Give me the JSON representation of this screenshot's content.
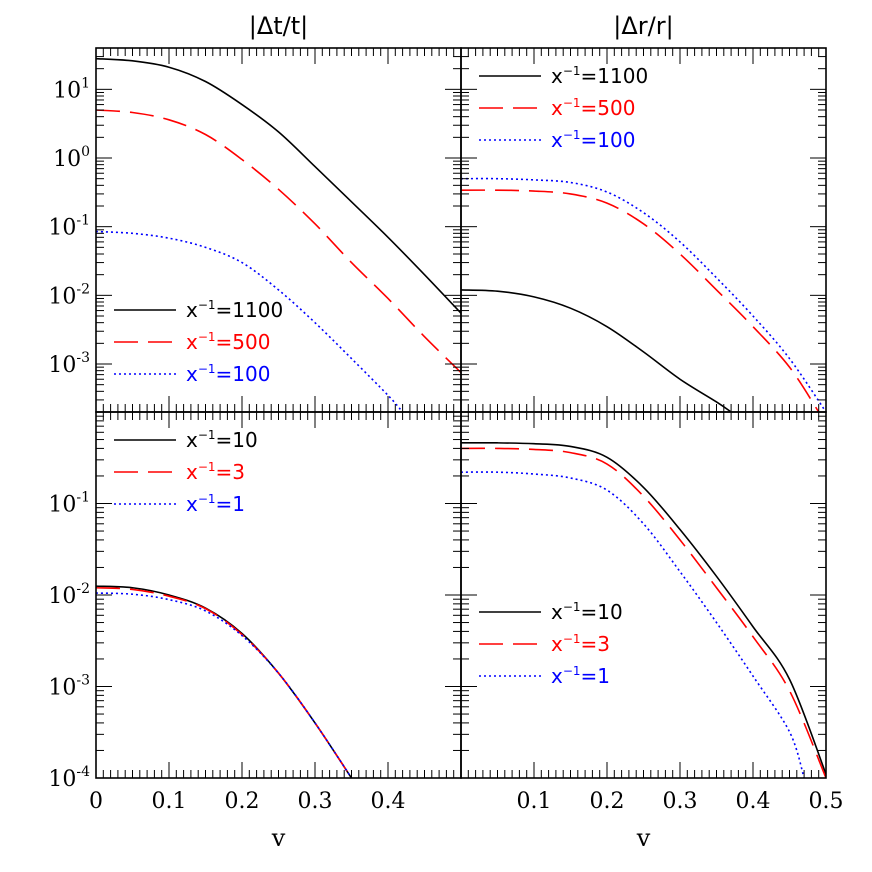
{
  "chart_data": [
    {
      "type": "line",
      "panel": "top-left",
      "title": "|Δt/t|",
      "xlim": [
        0,
        0.5
      ],
      "ylim": [
        0.0002,
        40
      ],
      "yscale": "log",
      "yticks": [
        {
          "value": 10,
          "base": "10",
          "exp": "1"
        },
        {
          "value": 1,
          "base": "10",
          "exp": "0"
        },
        {
          "value": 0.1,
          "base": "10",
          "exp": "-1"
        },
        {
          "value": 0.01,
          "base": "10",
          "exp": "-2"
        },
        {
          "value": 0.001,
          "base": "10",
          "exp": "-3"
        }
      ],
      "legend_position": "bottom-left",
      "series": [
        {
          "name": "x⁻¹=1100",
          "label_base": "x",
          "label_sup": "−1",
          "label_rest": "=1100",
          "color": "#000000",
          "dash": "solid",
          "x": [
            0,
            0.05,
            0.1,
            0.15,
            0.2,
            0.25,
            0.3,
            0.35,
            0.4,
            0.45,
            0.5
          ],
          "y": [
            28,
            26,
            21,
            13,
            6,
            2.4,
            0.75,
            0.23,
            0.07,
            0.02,
            0.0055
          ]
        },
        {
          "name": "x⁻¹=500",
          "label_base": "x",
          "label_sup": "−1",
          "label_rest": "=500",
          "color": "#ff0000",
          "dash": "long",
          "x": [
            0,
            0.05,
            0.1,
            0.15,
            0.2,
            0.25,
            0.3,
            0.35,
            0.4,
            0.45,
            0.5
          ],
          "y": [
            5,
            4.6,
            3.6,
            2.2,
            0.95,
            0.35,
            0.11,
            0.03,
            0.009,
            0.0025,
            0.00075
          ]
        },
        {
          "name": "x⁻¹=100",
          "label_base": "x",
          "label_sup": "−1",
          "label_rest": "=100",
          "color": "#0000ff",
          "dash": "dotted",
          "x": [
            0,
            0.05,
            0.1,
            0.15,
            0.2,
            0.25,
            0.3,
            0.35,
            0.4,
            0.42
          ],
          "y": [
            0.085,
            0.08,
            0.068,
            0.05,
            0.03,
            0.012,
            0.004,
            0.0012,
            0.00035,
            0.0002
          ]
        }
      ]
    },
    {
      "type": "line",
      "panel": "top-right",
      "title": "|Δr/r|",
      "xlim": [
        0,
        0.5
      ],
      "ylim": [
        0.0002,
        40
      ],
      "yscale": "log",
      "legend_position": "top-left",
      "series": [
        {
          "name": "x⁻¹=1100",
          "label_base": "x",
          "label_sup": "−1",
          "label_rest": "=1100",
          "color": "#000000",
          "dash": "solid",
          "x": [
            0,
            0.05,
            0.1,
            0.15,
            0.2,
            0.25,
            0.3,
            0.35,
            0.37
          ],
          "y": [
            0.012,
            0.0115,
            0.0095,
            0.0065,
            0.0035,
            0.0015,
            0.0006,
            0.00028,
            0.0002
          ]
        },
        {
          "name": "x⁻¹=500",
          "label_base": "x",
          "label_sup": "−1",
          "label_rest": "=500",
          "color": "#ff0000",
          "dash": "long",
          "x": [
            0,
            0.05,
            0.1,
            0.15,
            0.2,
            0.25,
            0.3,
            0.35,
            0.4,
            0.45,
            0.49
          ],
          "y": [
            0.34,
            0.34,
            0.33,
            0.3,
            0.22,
            0.11,
            0.04,
            0.012,
            0.0035,
            0.0009,
            0.0002
          ]
        },
        {
          "name": "x⁻¹=100",
          "label_base": "x",
          "label_sup": "−1",
          "label_rest": "=100",
          "color": "#0000ff",
          "dash": "dotted",
          "x": [
            0,
            0.05,
            0.1,
            0.15,
            0.2,
            0.25,
            0.3,
            0.35,
            0.4,
            0.45,
            0.5
          ],
          "y": [
            0.5,
            0.5,
            0.48,
            0.44,
            0.32,
            0.16,
            0.06,
            0.018,
            0.005,
            0.0012,
            0.0002
          ]
        }
      ]
    },
    {
      "type": "line",
      "panel": "bottom-left",
      "xlabel": "v",
      "xlim": [
        0,
        0.5
      ],
      "ylim": [
        0.0001,
        1
      ],
      "yscale": "log",
      "xticks": [
        "0",
        "0.1",
        "0.2",
        "0.3",
        "0.4"
      ],
      "yticks": [
        {
          "value": 0.1,
          "base": "10",
          "exp": "-1"
        },
        {
          "value": 0.01,
          "base": "10",
          "exp": "-2"
        },
        {
          "value": 0.001,
          "base": "10",
          "exp": "-3"
        },
        {
          "value": 0.0001,
          "base": "10",
          "exp": "-4"
        }
      ],
      "legend_position": "top-left",
      "series": [
        {
          "name": "x⁻¹=10",
          "label_base": "x",
          "label_sup": "−1",
          "label_rest": "=10",
          "color": "#000000",
          "dash": "solid",
          "x": [
            0,
            0.05,
            0.1,
            0.15,
            0.2,
            0.25,
            0.3,
            0.35
          ],
          "y": [
            0.0125,
            0.012,
            0.01,
            0.0072,
            0.0038,
            0.0014,
            0.0004,
            0.0001
          ]
        },
        {
          "name": "x⁻¹=3",
          "label_base": "x",
          "label_sup": "−1",
          "label_rest": "=3",
          "color": "#ff0000",
          "dash": "long",
          "x": [
            0,
            0.05,
            0.1,
            0.15,
            0.2,
            0.25,
            0.3,
            0.35
          ],
          "y": [
            0.012,
            0.0115,
            0.0097,
            0.0071,
            0.0037,
            0.0014,
            0.0004,
            0.0001
          ]
        },
        {
          "name": "x⁻¹=1",
          "label_base": "x",
          "label_sup": "−1",
          "label_rest": "=1",
          "color": "#0000ff",
          "dash": "dotted",
          "x": [
            0,
            0.05,
            0.1,
            0.15,
            0.2,
            0.25,
            0.3,
            0.35
          ],
          "y": [
            0.0105,
            0.0102,
            0.0089,
            0.0067,
            0.0036,
            0.0014,
            0.0004,
            0.0001
          ]
        }
      ]
    },
    {
      "type": "line",
      "panel": "bottom-right",
      "xlabel": "v",
      "xlim": [
        0,
        0.5
      ],
      "ylim": [
        0.0001,
        1
      ],
      "yscale": "log",
      "xticks": [
        "0.1",
        "0.2",
        "0.3",
        "0.4",
        "0.5"
      ],
      "legend_position": "center-left",
      "series": [
        {
          "name": "x⁻¹=10",
          "label_base": "x",
          "label_sup": "−1",
          "label_rest": "=10",
          "color": "#000000",
          "dash": "solid",
          "x": [
            0,
            0.05,
            0.1,
            0.15,
            0.2,
            0.25,
            0.3,
            0.35,
            0.4,
            0.45,
            0.5
          ],
          "y": [
            0.46,
            0.46,
            0.45,
            0.42,
            0.32,
            0.15,
            0.052,
            0.016,
            0.0045,
            0.0012,
            0.00011
          ]
        },
        {
          "name": "x⁻¹=3",
          "label_base": "x",
          "label_sup": "−1",
          "label_rest": "=3",
          "color": "#ff0000",
          "dash": "long",
          "x": [
            0,
            0.05,
            0.1,
            0.15,
            0.2,
            0.25,
            0.3,
            0.35,
            0.4,
            0.45,
            0.5
          ],
          "y": [
            0.4,
            0.4,
            0.39,
            0.36,
            0.27,
            0.12,
            0.04,
            0.012,
            0.0035,
            0.0009,
            0.0001
          ]
        },
        {
          "name": "x⁻¹=1",
          "label_base": "x",
          "label_sup": "−1",
          "label_rest": "=1",
          "color": "#0000ff",
          "dash": "dotted",
          "x": [
            0,
            0.05,
            0.1,
            0.15,
            0.2,
            0.25,
            0.3,
            0.35,
            0.4,
            0.45,
            0.47
          ],
          "y": [
            0.22,
            0.22,
            0.21,
            0.19,
            0.14,
            0.06,
            0.018,
            0.005,
            0.0013,
            0.00032,
            0.0001
          ]
        }
      ]
    }
  ]
}
